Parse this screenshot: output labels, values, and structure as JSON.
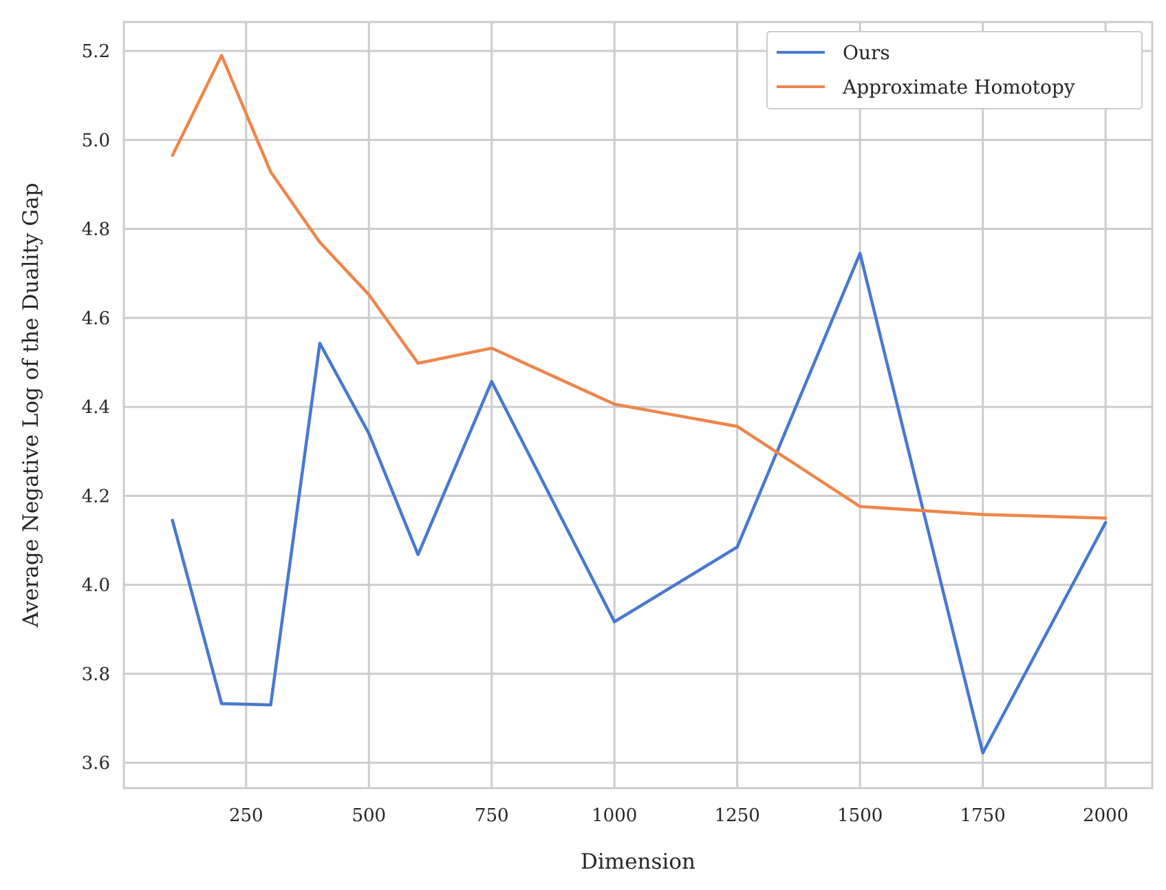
{
  "chart_data": {
    "type": "line",
    "title": "",
    "xlabel": "Dimension",
    "ylabel": "Average Negative Log of the Duality Gap",
    "xlim": [
      1,
      2095
    ],
    "ylim": [
      3.543,
      5.265
    ],
    "xticks": [
      250,
      500,
      750,
      1000,
      1250,
      1500,
      1750,
      2000
    ],
    "yticks": [
      3.6,
      3.8,
      4.0,
      4.2,
      4.4,
      4.6,
      4.8,
      5.0,
      5.2
    ],
    "grid": true,
    "legend_position": "top-right",
    "x": [
      100,
      200,
      300,
      400,
      500,
      600,
      750,
      1000,
      1250,
      1500,
      1750,
      2000
    ],
    "series": [
      {
        "name": "Ours",
        "color": "#4878d0",
        "values": [
          4.145,
          3.733,
          3.73,
          4.543,
          4.34,
          4.068,
          4.457,
          3.917,
          4.085,
          4.745,
          3.622,
          4.14
        ]
      },
      {
        "name": "Approximate Homotopy",
        "color": "#ee854a",
        "values": [
          4.965,
          5.19,
          4.928,
          4.77,
          4.652,
          4.498,
          4.532,
          4.406,
          4.356,
          4.176,
          4.158,
          4.15
        ]
      }
    ]
  }
}
